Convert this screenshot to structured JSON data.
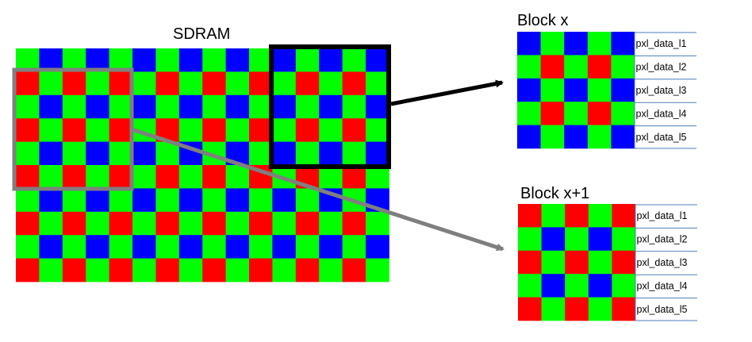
{
  "sdram": {
    "title": "SDRAM",
    "bayer_even_row": [
      "G",
      "B"
    ],
    "bayer_odd_row": [
      "R",
      "G"
    ]
  },
  "block_x": {
    "title": "Block x",
    "rows": [
      [
        "B",
        "G",
        "B",
        "G",
        "B"
      ],
      [
        "G",
        "R",
        "G",
        "R",
        "G"
      ],
      [
        "B",
        "G",
        "B",
        "G",
        "B"
      ],
      [
        "G",
        "R",
        "G",
        "R",
        "G"
      ],
      [
        "B",
        "G",
        "B",
        "G",
        "B"
      ]
    ],
    "row_labels": [
      "pxl_data_l1",
      "pxl_data_l2",
      "pxl_data_l3",
      "pxl_data_l4",
      "pxl_data_l5"
    ]
  },
  "block_x1": {
    "title": "Block x+1",
    "rows": [
      [
        "R",
        "G",
        "R",
        "G",
        "R"
      ],
      [
        "G",
        "B",
        "G",
        "B",
        "G"
      ],
      [
        "R",
        "G",
        "R",
        "G",
        "R"
      ],
      [
        "G",
        "B",
        "G",
        "B",
        "G"
      ],
      [
        "R",
        "G",
        "R",
        "G",
        "R"
      ]
    ],
    "row_labels": [
      "pxl_data_l1",
      "pxl_data_l2",
      "pxl_data_l3",
      "pxl_data_l4",
      "pxl_data_l5"
    ]
  },
  "colors": {
    "R": "#ff0000",
    "G": "#00ff00",
    "B": "#0000ff",
    "black_frame": "#000000",
    "grey_frame": "#7f7f7f",
    "label_line": "#4a7ebb"
  }
}
